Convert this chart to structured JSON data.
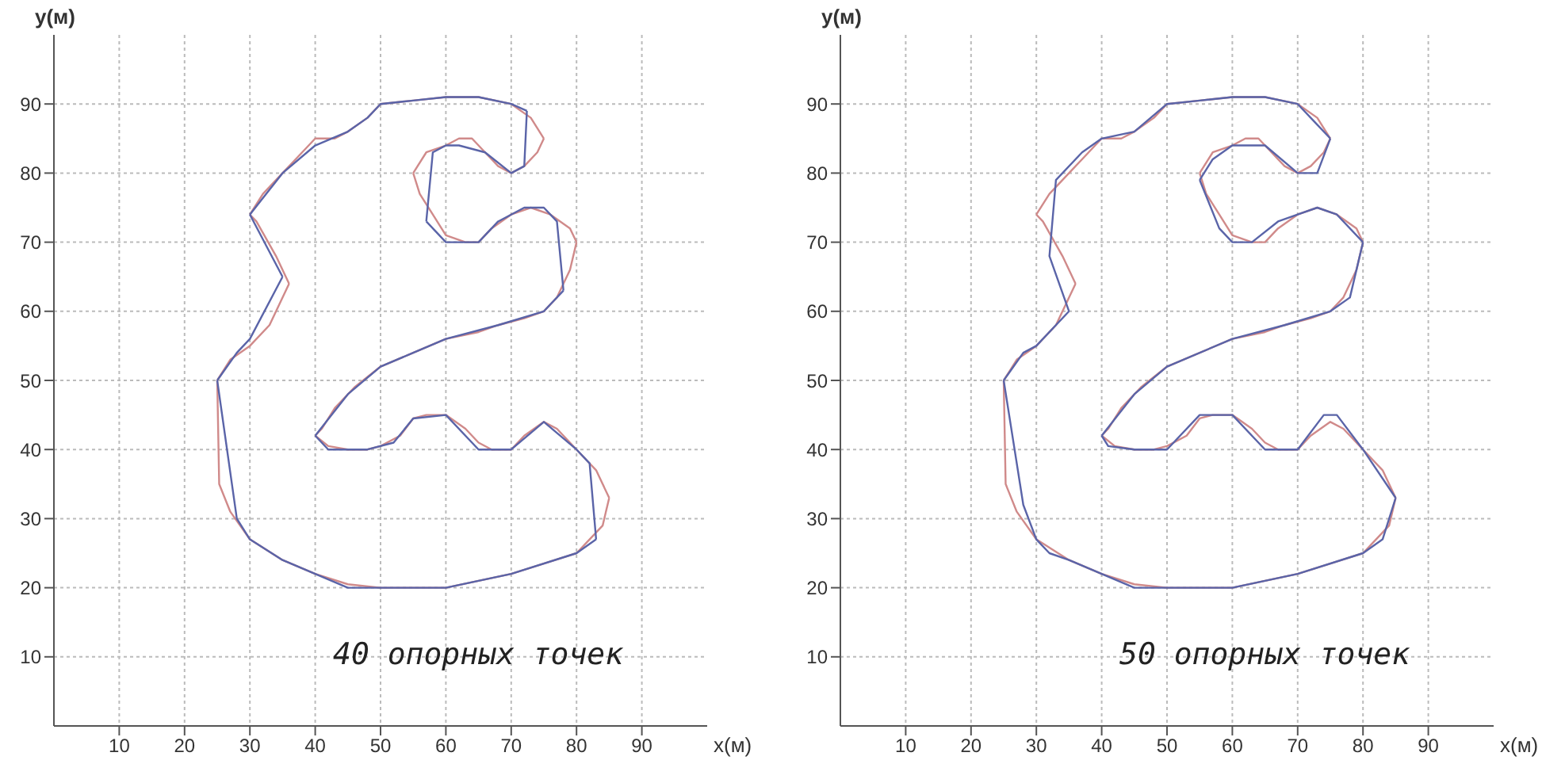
{
  "chart_data": [
    {
      "type": "line",
      "xlabel": "x(м)",
      "ylabel": "y(м)",
      "xlim": [
        0,
        100
      ],
      "ylim": [
        0,
        100
      ],
      "xticks": [
        10,
        20,
        30,
        40,
        50,
        60,
        70,
        80,
        90
      ],
      "yticks": [
        10,
        20,
        30,
        40,
        50,
        60,
        70,
        80,
        90
      ],
      "grid": true,
      "marker": "none",
      "annotations": [
        "40 опорных точек"
      ],
      "series": [
        {
          "color": "#d08a8a",
          "x": [
            25,
            27,
            30,
            33,
            36
          ],
          "values": [
            50,
            53,
            55,
            58,
            64
          ]
        },
        {
          "color": "#d08a8a",
          "x": [
            36,
            34,
            31,
            30
          ],
          "values": [
            64,
            68,
            73,
            74
          ]
        },
        {
          "color": "#d08a8a",
          "x": [
            30,
            32,
            35,
            38,
            40,
            43,
            45,
            48,
            50,
            55,
            60,
            65,
            70,
            73,
            75
          ],
          "values": [
            74,
            77,
            80,
            83,
            85,
            85,
            86,
            88,
            90,
            90.5,
            91,
            91,
            90,
            88,
            85
          ]
        },
        {
          "color": "#d08a8a",
          "x": [
            75,
            74,
            72,
            70,
            68,
            66,
            64,
            62,
            60,
            57,
            55
          ],
          "values": [
            85,
            83,
            81,
            80,
            81,
            83,
            85,
            85,
            84,
            83,
            80
          ]
        },
        {
          "color": "#d08a8a",
          "x": [
            55,
            56,
            58,
            60,
            63,
            65,
            67,
            70,
            73,
            76,
            79,
            80
          ],
          "values": [
            80,
            77,
            74,
            71,
            70,
            70,
            72,
            74,
            75,
            74,
            72,
            70
          ]
        },
        {
          "color": "#d08a8a",
          "x": [
            80,
            79,
            77,
            75,
            72,
            68,
            65,
            60,
            55,
            50,
            46,
            43,
            41,
            40
          ],
          "values": [
            70,
            66,
            62,
            60,
            59,
            58,
            57,
            56,
            54,
            52,
            49,
            46,
            43,
            42
          ]
        },
        {
          "color": "#d08a8a",
          "x": [
            40,
            42,
            45,
            48,
            50,
            53,
            55,
            57,
            60,
            63,
            65,
            67,
            70,
            72,
            75,
            77,
            80,
            83,
            85
          ],
          "values": [
            42,
            40.5,
            40,
            40,
            40.5,
            42,
            44.5,
            45,
            45,
            43,
            41,
            40,
            40,
            42,
            44,
            43,
            40,
            37,
            33
          ]
        },
        {
          "color": "#d08a8a",
          "x": [
            85,
            84,
            82,
            80,
            75,
            70,
            65,
            60,
            50,
            45,
            40,
            35,
            30,
            27,
            25.3,
            25
          ],
          "values": [
            33,
            29,
            27,
            25,
            23.5,
            22,
            21,
            20,
            20,
            20.5,
            22,
            24,
            27,
            31,
            35,
            50
          ]
        },
        {
          "color": "#5a64a8",
          "x": [
            25,
            28,
            30,
            35
          ],
          "values": [
            50,
            54,
            56,
            65
          ]
        },
        {
          "color": "#5a64a8",
          "x": [
            35,
            30
          ],
          "values": [
            65,
            74
          ]
        },
        {
          "color": "#5a64a8",
          "x": [
            30,
            35,
            40,
            45,
            48,
            50,
            55,
            60,
            65,
            70,
            72.4
          ],
          "values": [
            74,
            80,
            84,
            86,
            88,
            90,
            90.5,
            91,
            91,
            90,
            89
          ]
        },
        {
          "color": "#5a64a8",
          "x": [
            72.4,
            72,
            70,
            66,
            62,
            60,
            58,
            57
          ],
          "values": [
            89,
            81,
            80,
            83,
            84,
            84,
            83,
            73
          ]
        },
        {
          "color": "#5a64a8",
          "x": [
            57,
            60,
            65,
            68,
            72,
            75,
            77,
            78
          ],
          "values": [
            73,
            70,
            70,
            73,
            75,
            75,
            73,
            63
          ]
        },
        {
          "color": "#5a64a8",
          "x": [
            78,
            75,
            68,
            60,
            55,
            50,
            45,
            40
          ],
          "values": [
            63,
            60,
            58,
            56,
            54,
            52,
            48,
            42
          ]
        },
        {
          "color": "#5a64a8",
          "x": [
            40,
            42,
            48,
            52,
            55,
            60,
            65,
            70,
            75,
            80,
            82,
            83
          ],
          "values": [
            42,
            40,
            40,
            41,
            44.5,
            45,
            40,
            40,
            44,
            40,
            38,
            27
          ]
        },
        {
          "color": "#5a64a8",
          "x": [
            83,
            80,
            70,
            60,
            45,
            35,
            30,
            28,
            25
          ],
          "values": [
            27,
            25,
            22,
            20,
            20,
            24,
            27,
            30,
            50
          ]
        }
      ]
    },
    {
      "type": "line",
      "xlabel": "x(м)",
      "ylabel": "y(м)",
      "xlim": [
        0,
        100
      ],
      "ylim": [
        0,
        100
      ],
      "xticks": [
        10,
        20,
        30,
        40,
        50,
        60,
        70,
        80,
        90
      ],
      "yticks": [
        10,
        20,
        30,
        40,
        50,
        60,
        70,
        80,
        90
      ],
      "grid": true,
      "marker": "none",
      "annotations": [
        "50 опорных точек"
      ],
      "series": [
        {
          "color": "#d08a8a",
          "x": [
            25,
            27,
            30,
            33,
            36
          ],
          "values": [
            50,
            53,
            55,
            58,
            64
          ]
        },
        {
          "color": "#d08a8a",
          "x": [
            36,
            34,
            31,
            30
          ],
          "values": [
            64,
            68,
            73,
            74
          ]
        },
        {
          "color": "#d08a8a",
          "x": [
            30,
            32,
            35,
            38,
            40,
            43,
            45,
            48,
            50,
            55,
            60,
            65,
            70,
            73,
            75
          ],
          "values": [
            74,
            77,
            80,
            83,
            85,
            85,
            86,
            88,
            90,
            90.5,
            91,
            91,
            90,
            88,
            85
          ]
        },
        {
          "color": "#d08a8a",
          "x": [
            75,
            74,
            72,
            70,
            68,
            66,
            64,
            62,
            60,
            57,
            55
          ],
          "values": [
            85,
            83,
            81,
            80,
            81,
            83,
            85,
            85,
            84,
            83,
            80
          ]
        },
        {
          "color": "#d08a8a",
          "x": [
            55,
            56,
            58,
            60,
            63,
            65,
            67,
            70,
            73,
            76,
            79,
            80
          ],
          "values": [
            80,
            77,
            74,
            71,
            70,
            70,
            72,
            74,
            75,
            74,
            72,
            70
          ]
        },
        {
          "color": "#d08a8a",
          "x": [
            80,
            79,
            77,
            75,
            72,
            68,
            65,
            60,
            55,
            50,
            46,
            43,
            41,
            40
          ],
          "values": [
            70,
            66,
            62,
            60,
            59,
            58,
            57,
            56,
            54,
            52,
            49,
            46,
            43,
            42
          ]
        },
        {
          "color": "#d08a8a",
          "x": [
            40,
            42,
            45,
            48,
            50,
            53,
            55,
            57,
            60,
            63,
            65,
            67,
            70,
            72,
            75,
            77,
            80,
            83,
            85
          ],
          "values": [
            42,
            40.5,
            40,
            40,
            40.5,
            42,
            44.5,
            45,
            45,
            43,
            41,
            40,
            40,
            42,
            44,
            43,
            40,
            37,
            33
          ]
        },
        {
          "color": "#d08a8a",
          "x": [
            85,
            84,
            82,
            80,
            75,
            70,
            65,
            60,
            50,
            45,
            40,
            35,
            30,
            27,
            25.3,
            25
          ],
          "values": [
            33,
            29,
            27,
            25,
            23.5,
            22,
            21,
            20,
            20,
            20.5,
            22,
            24,
            27,
            31,
            35,
            50
          ]
        },
        {
          "color": "#5a64a8",
          "x": [
            25,
            28,
            30,
            35
          ],
          "values": [
            50,
            54,
            55,
            60
          ]
        },
        {
          "color": "#5a64a8",
          "x": [
            35,
            32,
            33,
            37,
            40,
            45,
            50,
            55,
            60,
            65,
            70,
            73,
            75
          ],
          "values": [
            60,
            68,
            79,
            83,
            85,
            86,
            90,
            90.5,
            91,
            91,
            90,
            87,
            85
          ]
        },
        {
          "color": "#5a64a8",
          "x": [
            75,
            73,
            70,
            65,
            60,
            57,
            55
          ],
          "values": [
            85,
            80,
            80,
            84,
            84,
            82,
            79
          ]
        },
        {
          "color": "#5a64a8",
          "x": [
            55,
            58,
            60,
            63,
            67,
            70,
            73,
            76,
            80
          ],
          "values": [
            79,
            72,
            70,
            70,
            73,
            74,
            75,
            74,
            70
          ]
        },
        {
          "color": "#5a64a8",
          "x": [
            80,
            78,
            75,
            68,
            60,
            50,
            45,
            40
          ],
          "values": [
            70,
            62,
            60,
            58,
            56,
            52,
            48,
            42
          ]
        },
        {
          "color": "#5a64a8",
          "x": [
            40,
            41,
            45,
            50,
            55,
            60,
            65,
            70,
            74,
            76,
            80,
            85
          ],
          "values": [
            42,
            40.5,
            40,
            40,
            45,
            45,
            40,
            40,
            45,
            45,
            40,
            33
          ]
        },
        {
          "color": "#5a64a8",
          "x": [
            85,
            83,
            80,
            70,
            60,
            45,
            35,
            32,
            30,
            28,
            25
          ],
          "values": [
            33,
            27,
            25,
            22,
            20,
            20,
            24,
            25,
            27,
            32,
            50
          ]
        }
      ]
    }
  ]
}
